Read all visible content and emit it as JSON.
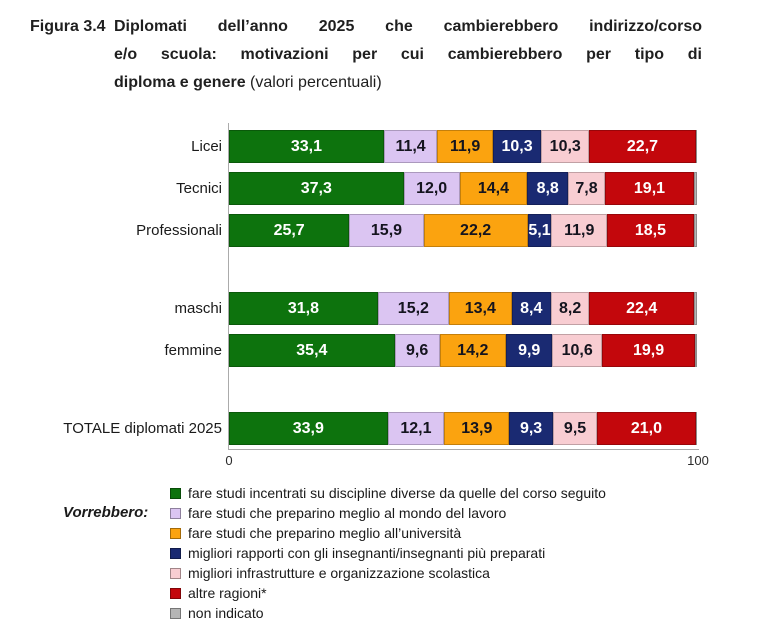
{
  "title": {
    "figure_label": "Figura 3.4",
    "line1": "Diplomati dell’anno 2025 che cambierebbero indirizzo/corso",
    "line2": "e/o scuola: motivazioni per cui cambierebbero per tipo di",
    "line3_bold": "diploma e genere",
    "line3_normal": " (valori percentuali)"
  },
  "legend": {
    "heading": "Vorrebbero:"
  },
  "colors": {
    "axis_line": "#ababab",
    "title_text": "#1f1f1f",
    "dark_value_text": "#14141e",
    "white_value_text": "#ffffff"
  },
  "chart_data": {
    "type": "bar",
    "orientation": "horizontal-stacked",
    "title": "Diplomati dell’anno 2025 che cambierebbero indirizzo/corso e/o scuola: motivazioni per cui cambierebbero per tipo di diploma e genere (valori percentuali)",
    "xlabel": "",
    "ylabel": "",
    "xlim": [
      0,
      100
    ],
    "xaxis": {
      "min_label": "0",
      "max_label": "100"
    },
    "grid": false,
    "legend_position": "bottom",
    "series": [
      {
        "name": "fare studi incentrati su discipline diverse da quelle del corso seguito",
        "color": "#0d730d",
        "text_color": "#ffffff"
      },
      {
        "name": "fare studi che preparino meglio al mondo del lavoro",
        "color": "#dbc5f2",
        "text_color": "#14141e"
      },
      {
        "name": "fare studi che preparino meglio all’università",
        "color": "#fba30f",
        "text_color": "#14141e"
      },
      {
        "name": "migliori rapporti con gli insegnanti/insegnanti più preparati",
        "color": "#1a2a72",
        "text_color": "#ffffff"
      },
      {
        "name": "migliori infrastrutture e organizzazione scolastica",
        "color": "#f8cdd2",
        "text_color": "#14141e"
      },
      {
        "name": "altre ragioni*",
        "color": "#c3070c",
        "text_color": "#ffffff"
      },
      {
        "name": "non indicato",
        "color": "#b5b5b5",
        "text_color": "#14141e"
      }
    ],
    "rows": [
      {
        "label": "Licei",
        "group": 0,
        "values": [
          33.1,
          11.4,
          11.9,
          10.3,
          10.3,
          22.7
        ],
        "value_labels": [
          "33,1",
          "11,4",
          "11,9",
          "10,3",
          "10,3",
          "22,7"
        ]
      },
      {
        "label": "Tecnici",
        "group": 0,
        "values": [
          37.3,
          12.0,
          14.4,
          8.8,
          7.8,
          19.1
        ],
        "value_labels": [
          "37,3",
          "12,0",
          "14,4",
          "8,8",
          "7,8",
          "19,1"
        ]
      },
      {
        "label": "Professionali",
        "group": 0,
        "values": [
          25.7,
          15.9,
          22.2,
          5.1,
          11.9,
          18.5
        ],
        "value_labels": [
          "25,7",
          "15,9",
          "22,2",
          "5,1",
          "11,9",
          "18,5"
        ]
      },
      {
        "label": "maschi",
        "group": 1,
        "values": [
          31.8,
          15.2,
          13.4,
          8.4,
          8.2,
          22.4
        ],
        "value_labels": [
          "31,8",
          "15,2",
          "13,4",
          "8,4",
          "8,2",
          "22,4"
        ]
      },
      {
        "label": "femmine",
        "group": 1,
        "values": [
          35.4,
          9.6,
          14.2,
          9.9,
          10.6,
          19.9
        ],
        "value_labels": [
          "35,4",
          "9,6",
          "14,2",
          "9,9",
          "10,6",
          "19,9"
        ]
      },
      {
        "label": "TOTALE diplomati 2025",
        "group": 2,
        "values": [
          33.9,
          12.1,
          13.9,
          9.3,
          9.5,
          21.0
        ],
        "value_labels": [
          "33,9",
          "12,1",
          "13,9",
          "9,3",
          "9,5",
          "21,0"
        ]
      }
    ]
  }
}
